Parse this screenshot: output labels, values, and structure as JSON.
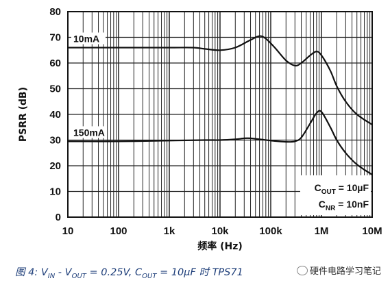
{
  "chart_data": {
    "type": "line",
    "xlabel": "频率 (Hz)",
    "ylabel": "PSRR (dB)",
    "xscale": "log",
    "xlim": [
      10,
      10000000
    ],
    "ylim": [
      0,
      80
    ],
    "x_ticks": [
      {
        "value": 10,
        "label": "10"
      },
      {
        "value": 100,
        "label": "100"
      },
      {
        "value": 1000,
        "label": "1k"
      },
      {
        "value": 10000,
        "label": "10k"
      },
      {
        "value": 100000,
        "label": "100k"
      },
      {
        "value": 1000000,
        "label": "1M"
      },
      {
        "value": 10000000,
        "label": "10M"
      }
    ],
    "y_ticks": [
      0,
      10,
      20,
      30,
      40,
      50,
      60,
      70,
      80
    ],
    "grid": "log-minor",
    "series": [
      {
        "name": "10mA",
        "x": [
          10,
          100,
          1000,
          3000,
          5000,
          10000,
          20000,
          40000,
          60000,
          80000,
          120000,
          200000,
          300000,
          400000,
          600000,
          800000,
          1000000,
          1500000,
          2000000,
          3000000,
          5000000,
          10000000
        ],
        "y": [
          66,
          66,
          66,
          66,
          65.5,
          65,
          66,
          69,
          70.5,
          69.5,
          66,
          61,
          59,
          60,
          63,
          64.5,
          63,
          57,
          51,
          45,
          40,
          36
        ]
      },
      {
        "name": "150mA",
        "x": [
          10,
          100,
          1000,
          5000,
          10000,
          20000,
          30000,
          40000,
          60000,
          100000,
          200000,
          300000,
          400000,
          600000,
          800000,
          1000000,
          1500000,
          2000000,
          3000000,
          5000000,
          10000000
        ],
        "y": [
          29.5,
          29.5,
          29.8,
          30,
          30,
          30.3,
          30.7,
          30.7,
          30.3,
          29.8,
          29.3,
          29.5,
          31,
          36.5,
          40.5,
          41,
          35,
          30,
          25,
          20.5,
          16.5
        ]
      }
    ],
    "annotations": [
      {
        "main": "C",
        "sub": "OUT",
        "rest": " = 10µF"
      },
      {
        "main": "C",
        "sub": "NR",
        "rest": " = 10nF"
      }
    ]
  },
  "caption": {
    "prefix": "图 4: ",
    "v": "V",
    "v_in_sub": "IN",
    "minus": " - V",
    "v_out_sub": "OUT",
    "eq1": " = 0.25V, ",
    "c": "C",
    "c_out_sub": "OUT",
    "eq2": " = 10µF 时 TPS71"
  },
  "watermark": {
    "text": "硬件电路学习笔记"
  }
}
